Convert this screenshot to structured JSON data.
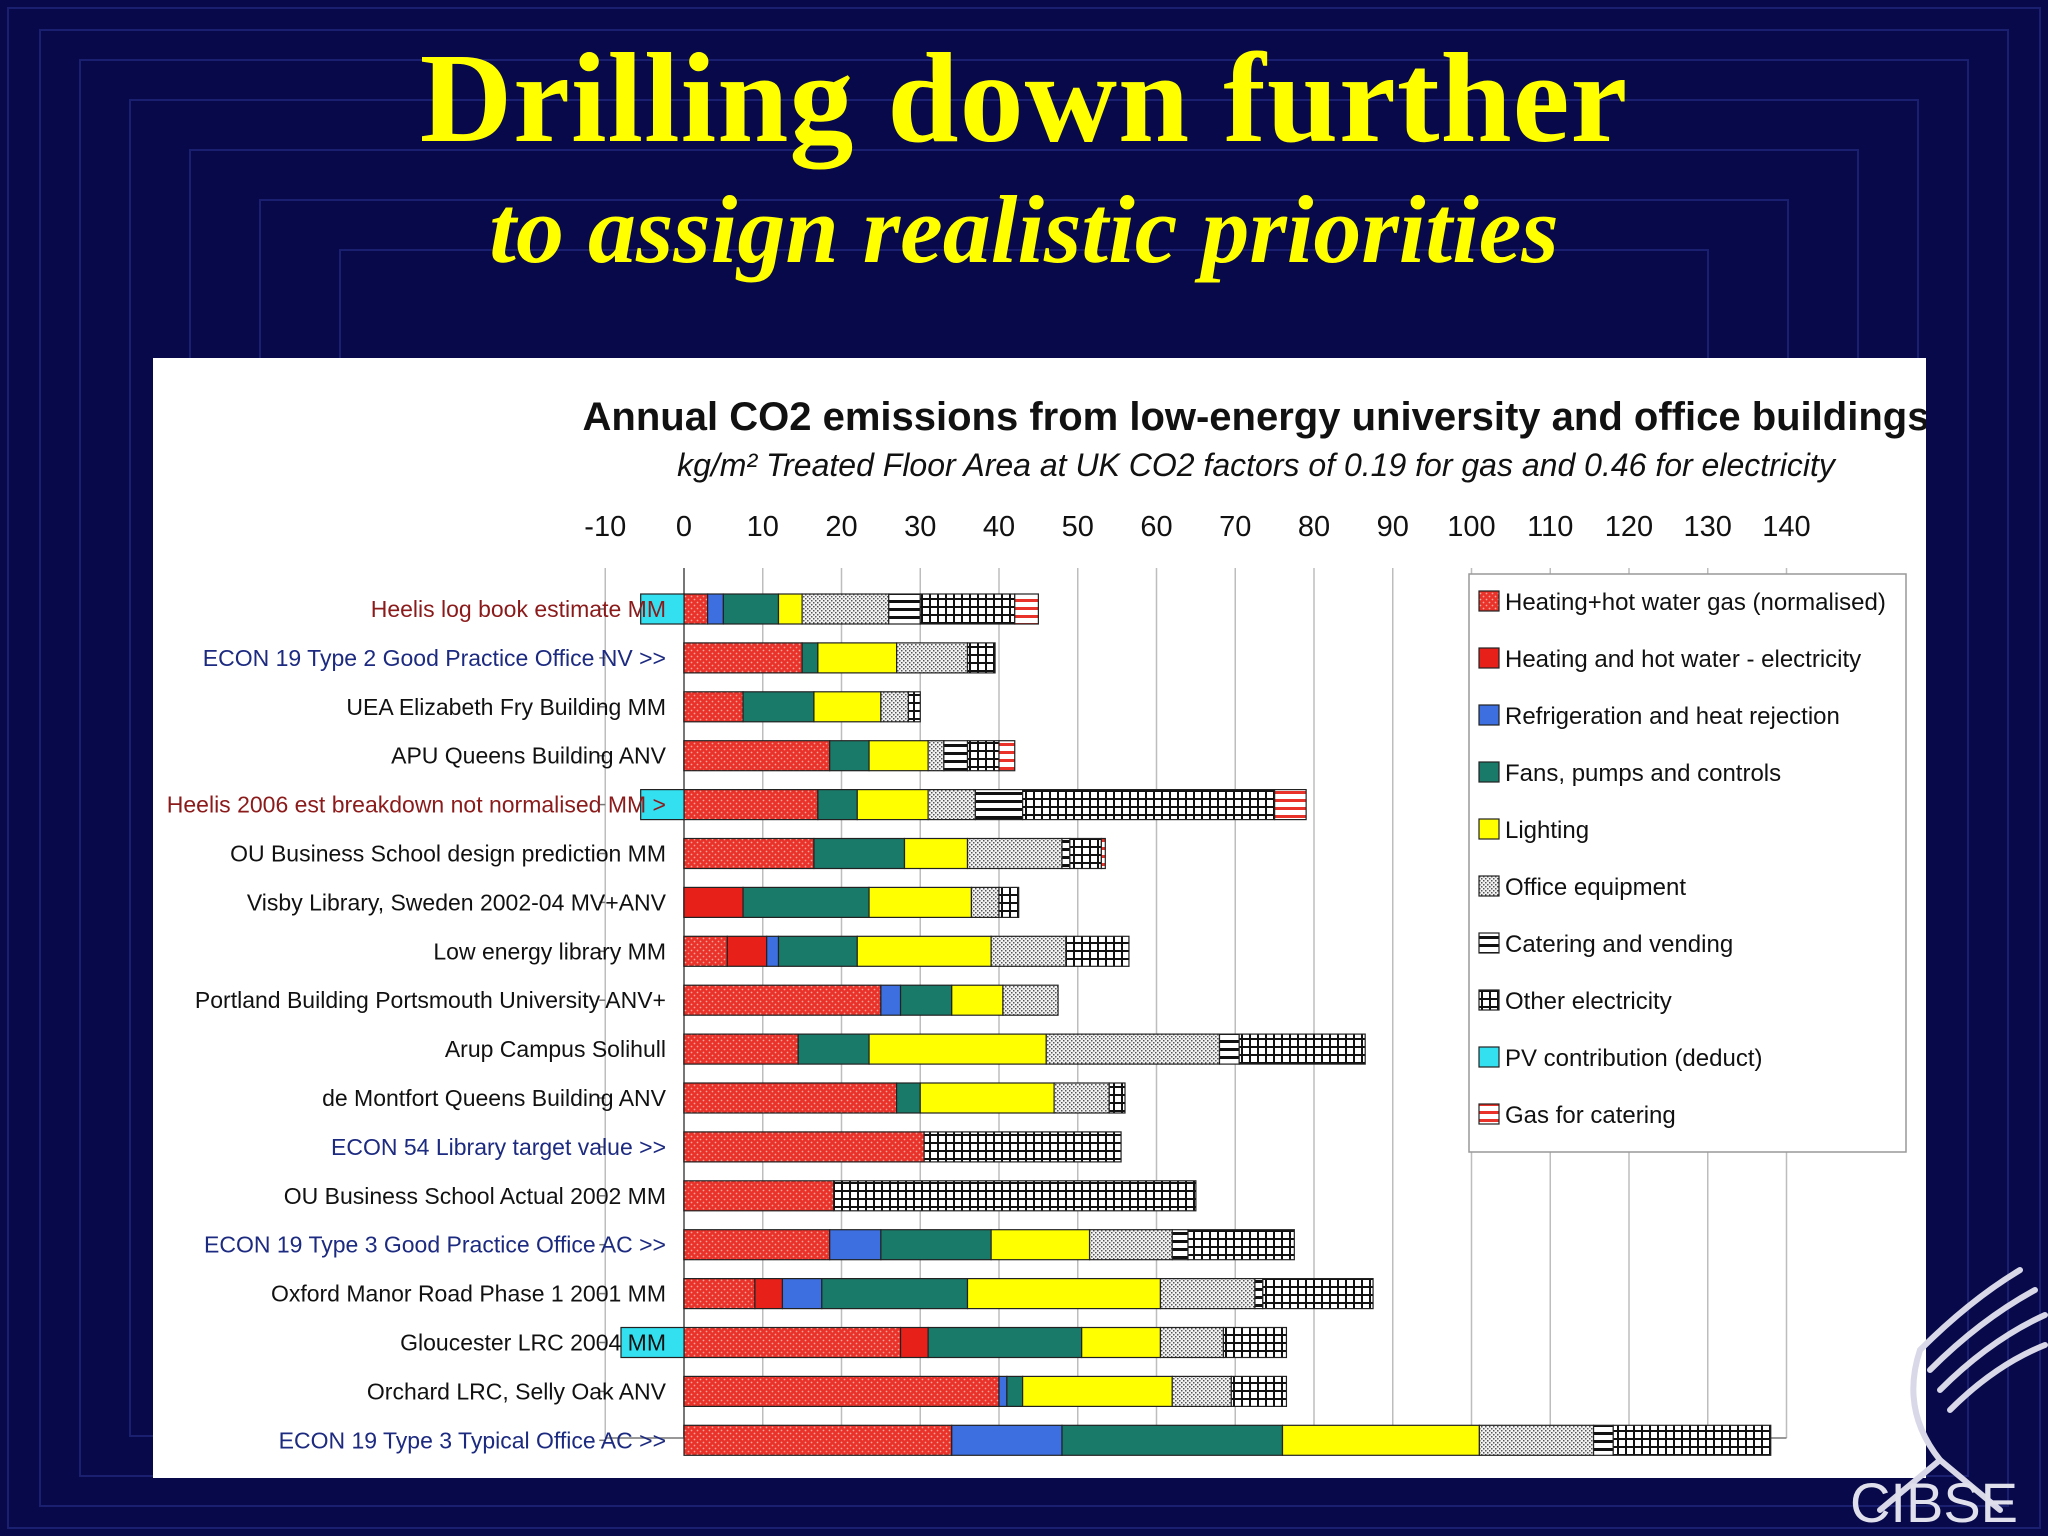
{
  "slide": {
    "title": "Drilling down further",
    "subtitle": "to assign realistic priorities",
    "logo_text": "CIBSE"
  },
  "colors": {
    "background": "#07094a",
    "title": "#ffff00"
  },
  "chart_data": {
    "type": "bar",
    "orientation": "horizontal",
    "stacked": true,
    "title": "Annual CO2 emissions from low-energy university and office buildings",
    "subtitle": "kg/m² Treated Floor Area at UK CO2 factors of 0.19 for gas and 0.46 for electricity",
    "xlim": [
      -10,
      140
    ],
    "xticks": [
      "-10",
      "0",
      "10",
      "20",
      "30",
      "40",
      "50",
      "60",
      "70",
      "80",
      "90",
      "100",
      "110",
      "120",
      "130",
      "140"
    ],
    "grid": true,
    "legend_position": "top-right",
    "categories": [
      "Heelis log book estimate MM",
      "ECON 19 Type 2 Good Practice Office NV >>",
      "UEA Elizabeth Fry Building MM",
      "APU Queens Building ANV",
      "Heelis 2006 est breakdown not normalised MM >",
      "OU Business School design prediction MM",
      "Visby Library, Sweden 2002-04 MV+ANV",
      "Low energy library MM",
      "Portland Building Portsmouth University ANV+",
      "Arup Campus Solihull",
      "de Montfort Queens Building ANV",
      "ECON 54 Library target value >>",
      "OU Business School Actual 2002 MM",
      "ECON 19 Type 3 Good Practice Office AC >>",
      "Oxford Manor Road Phase 1 2001 MM",
      "Gloucester LRC 2004 MM",
      "Orchard LRC, Selly Oak ANV",
      "ECON 19 Type 3 Typical  Office AC >>"
    ],
    "category_colors": [
      "#8b1a1a",
      "#1c2a80",
      "#111111",
      "#111111",
      "#8b1a1a",
      "#111111",
      "#111111",
      "#111111",
      "#111111",
      "#111111",
      "#111111",
      "#1c2a80",
      "#111111",
      "#1c2a80",
      "#111111",
      "#111111",
      "#111111",
      "#1c2a80"
    ],
    "series": [
      {
        "name": "Heating+hot water gas (normalised)",
        "color": "#e8322a",
        "pattern": "dots",
        "values": [
          3,
          15,
          7.5,
          18.5,
          17,
          16.5,
          0,
          5.5,
          25,
          14.5,
          27,
          30.5,
          19,
          18.5,
          9,
          27.5,
          40,
          34
        ]
      },
      {
        "name": "Heating and hot water  - electricity",
        "color": "#e8201a",
        "pattern": "solid",
        "values": [
          0,
          0,
          0,
          0,
          0,
          0,
          7.5,
          5,
          0,
          0,
          0,
          0,
          0,
          0,
          3.5,
          3.5,
          0,
          0
        ]
      },
      {
        "name": "Refrigeration and heat rejection",
        "color": "#3d6fe0",
        "pattern": "solid",
        "values": [
          2,
          0,
          0,
          0,
          0,
          0,
          0,
          1.5,
          2.5,
          0,
          0,
          0,
          0,
          6.5,
          5,
          0,
          1,
          14
        ]
      },
      {
        "name": "Fans, pumps and controls",
        "color": "#1a7a6a",
        "pattern": "solid",
        "values": [
          7,
          2,
          9,
          5,
          5,
          11.5,
          16,
          10,
          6.5,
          9,
          3,
          0,
          0,
          14,
          18.5,
          19.5,
          2,
          28
        ]
      },
      {
        "name": "Lighting",
        "color": "#ffff00",
        "pattern": "solid",
        "values": [
          3,
          10,
          8.5,
          7.5,
          9,
          8,
          13,
          17,
          6.5,
          22.5,
          17,
          0,
          0,
          12.5,
          24.5,
          10,
          19,
          25
        ]
      },
      {
        "name": "Office equipment",
        "color": "#bbbbbb",
        "pattern": "speckle",
        "values": [
          11,
          9,
          3.5,
          2,
          6,
          12,
          3.5,
          9.5,
          7,
          22,
          7,
          0,
          0,
          10.5,
          12,
          8,
          7.5,
          14.5
        ]
      },
      {
        "name": "Catering and vending",
        "color": "#ffffff",
        "pattern": "hlines",
        "values": [
          4,
          0,
          0,
          3,
          6,
          1,
          0,
          0,
          0,
          2.5,
          0,
          0,
          0,
          2,
          1,
          0,
          0,
          2.5
        ]
      },
      {
        "name": "Other electricity",
        "color": "#ffffff",
        "pattern": "grid",
        "values": [
          12,
          3.5,
          1.5,
          4,
          32,
          4,
          2.5,
          8,
          0,
          16,
          2,
          25,
          46,
          13.5,
          14,
          8,
          7,
          20
        ]
      },
      {
        "name": "PV contribution (deduct)",
        "color": "#33e0f0",
        "pattern": "solid",
        "values": [
          -5.5,
          0,
          0,
          0,
          -5.5,
          0,
          0,
          0,
          0,
          0,
          0,
          0,
          0,
          0,
          0,
          -8,
          0,
          0
        ]
      },
      {
        "name": "Gas for catering",
        "color": "#e8322a",
        "pattern": "redlines",
        "values": [
          3,
          0,
          0,
          2,
          4,
          0.5,
          0,
          0,
          0,
          0,
          0,
          0,
          0,
          0,
          0,
          0,
          0,
          0
        ]
      }
    ]
  }
}
